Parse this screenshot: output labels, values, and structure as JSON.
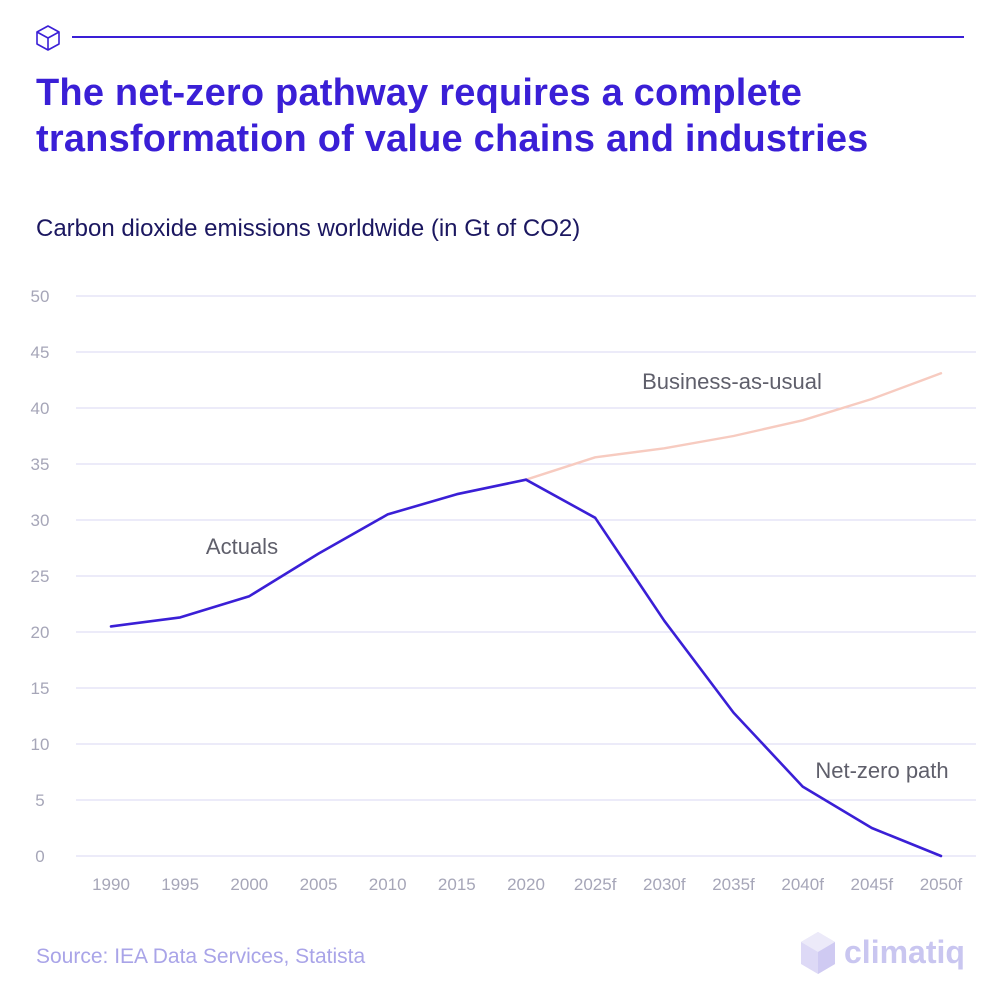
{
  "header": {
    "title": "The net-zero pathway requires a complete transformation of value chains and industries",
    "subtitle": "Carbon dioxide emissions worldwide (in Gt of CO2)",
    "icon": "cube-icon",
    "accent_color": "#3a1fd6"
  },
  "chart_data": {
    "type": "line",
    "categories": [
      "1990",
      "1995",
      "2000",
      "2005",
      "2010",
      "2015",
      "2020",
      "2025f",
      "2030f",
      "2035f",
      "2040f",
      "2045f",
      "2050f"
    ],
    "ylim": [
      0,
      50
    ],
    "yticks": [
      0,
      5,
      10,
      15,
      20,
      25,
      30,
      35,
      40,
      45,
      50
    ],
    "grid": true,
    "series": [
      {
        "name": "Actuals",
        "color": "#3a1fd6",
        "points": [
          {
            "x": "1990",
            "y": 20.5
          },
          {
            "x": "1995",
            "y": 21.3
          },
          {
            "x": "2000",
            "y": 23.2
          },
          {
            "x": "2005",
            "y": 27.0
          },
          {
            "x": "2010",
            "y": 30.5
          },
          {
            "x": "2015",
            "y": 32.3
          },
          {
            "x": "2020",
            "y": 33.6
          }
        ]
      },
      {
        "name": "Business-as-usual",
        "color": "#f7cbc0",
        "points": [
          {
            "x": "2020",
            "y": 33.6
          },
          {
            "x": "2025f",
            "y": 35.6
          },
          {
            "x": "2030f",
            "y": 36.4
          },
          {
            "x": "2035f",
            "y": 37.5
          },
          {
            "x": "2040f",
            "y": 38.9
          },
          {
            "x": "2045f",
            "y": 40.8
          },
          {
            "x": "2050f",
            "y": 43.1
          }
        ]
      },
      {
        "name": "Net-zero path",
        "color": "#3a1fd6",
        "points": [
          {
            "x": "2020",
            "y": 33.6
          },
          {
            "x": "2025f",
            "y": 30.2
          },
          {
            "x": "2030f",
            "y": 21.0
          },
          {
            "x": "2035f",
            "y": 12.8
          },
          {
            "x": "2040f",
            "y": 6.2
          },
          {
            "x": "2045f",
            "y": 2.5
          },
          {
            "x": "2050f",
            "y": 0.0
          }
        ]
      }
    ]
  },
  "footer": {
    "source": "Source: IEA Data Services, Statista",
    "logo_text": "climatiq",
    "logo_icon": "climatiq-logo-icon"
  }
}
